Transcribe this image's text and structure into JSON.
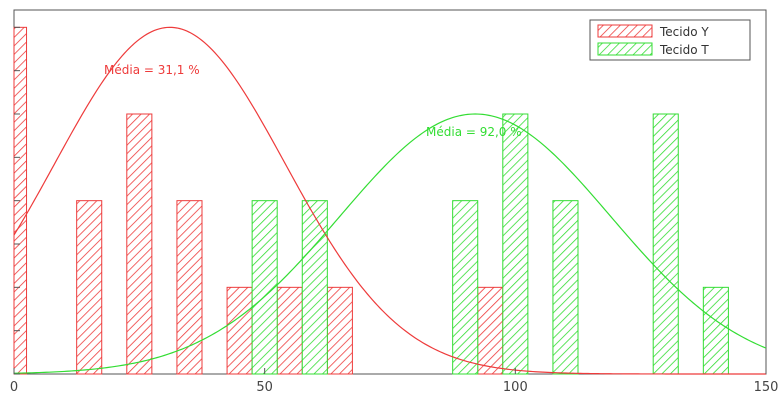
{
  "chart_data": {
    "type": "bar",
    "title": "",
    "xlabel": "",
    "ylabel": "",
    "xlim": [
      0,
      150
    ],
    "ylim": [
      0,
      4.2
    ],
    "x_ticks": [
      0,
      50,
      100,
      150
    ],
    "y_ticks": [
      0,
      1,
      2,
      3,
      4
    ],
    "y_minor_ticks": [
      0.5,
      1.5,
      2.5,
      3.5
    ],
    "bar_width": 5,
    "grid": false,
    "legend_position": "top-right",
    "series": [
      {
        "name": "Tecido Y",
        "color": "#ee3b3b",
        "x": [
          0,
          15,
          25,
          35,
          45,
          55,
          65,
          95
        ],
        "values": [
          4,
          2,
          3,
          2,
          1,
          1,
          1,
          1
        ]
      },
      {
        "name": "Tecido T",
        "color": "#33dd33",
        "x": [
          50,
          60,
          90,
          100,
          110,
          130,
          140
        ],
        "values": [
          2,
          2,
          2,
          3,
          2,
          3,
          1
        ]
      }
    ],
    "curves": [
      {
        "series": "Tecido Y",
        "mean": 31.1,
        "peak": 4,
        "sd": 23
      },
      {
        "series": "Tecido T",
        "mean": 92.0,
        "peak": 3,
        "sd": 27
      }
    ],
    "annotations": [
      {
        "series": "Tecido Y",
        "text": "Média = 31,1 %",
        "color": "#ee3b3b"
      },
      {
        "series": "Tecido T",
        "text": "Média = 92,0 %",
        "color": "#33dd33"
      }
    ]
  }
}
